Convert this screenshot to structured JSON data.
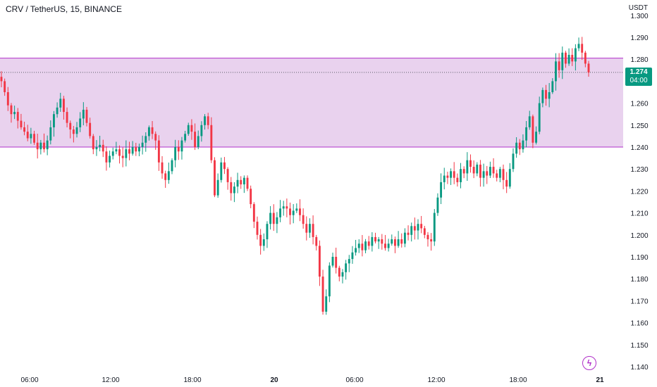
{
  "header": {
    "symbol_line": "CRV / TetherUS, 15, BINANCE",
    "currency": "USDT"
  },
  "last_price": {
    "value": "1.274",
    "countdown": "04:00",
    "color": "#089981"
  },
  "logo": {
    "icon": "lightning-bolt-icon",
    "color": "#b02fc9"
  },
  "chart_data": {
    "type": "candlestick",
    "y_ticks": [
      "1.140",
      "1.150",
      "1.160",
      "1.170",
      "1.180",
      "1.190",
      "1.200",
      "1.210",
      "1.220",
      "1.230",
      "1.240",
      "1.250",
      "1.260",
      "1.280",
      "1.290",
      "1.300"
    ],
    "x_ticks": [
      "06:00",
      "12:00",
      "18:00",
      "20",
      "06:00",
      "12:00",
      "18:00",
      "21"
    ],
    "ylim": [
      1.138,
      1.302
    ],
    "zone": {
      "low": 1.24,
      "high": 1.2805,
      "fill": "#e9d2ee",
      "line": "#b02fc9"
    },
    "last_price_line": 1.274,
    "up_color": "#089981",
    "down_color": "#f23645",
    "grid": false,
    "closes": [
      1.27,
      1.265,
      1.259,
      1.255,
      1.256,
      1.252,
      1.249,
      1.247,
      1.244,
      1.246,
      1.242,
      1.239,
      1.242,
      1.239,
      1.243,
      1.249,
      1.255,
      1.258,
      1.262,
      1.256,
      1.251,
      1.248,
      1.246,
      1.249,
      1.253,
      1.257,
      1.251,
      1.245,
      1.239,
      1.24,
      1.241,
      1.238,
      1.233,
      1.236,
      1.238,
      1.239,
      1.236,
      1.235,
      1.239,
      1.237,
      1.24,
      1.238,
      1.24,
      1.242,
      1.245,
      1.249,
      1.246,
      1.243,
      1.233,
      1.228,
      1.225,
      1.229,
      1.234,
      1.24,
      1.238,
      1.243,
      1.246,
      1.25,
      1.247,
      1.24,
      1.245,
      1.25,
      1.254,
      1.25,
      1.234,
      1.218,
      1.225,
      1.233,
      1.23,
      1.224,
      1.219,
      1.222,
      1.225,
      1.223,
      1.226,
      1.221,
      1.214,
      1.206,
      1.2,
      1.195,
      1.198,
      1.205,
      1.21,
      1.205,
      1.208,
      1.212,
      1.213,
      1.212,
      1.209,
      1.211,
      1.212,
      1.209,
      1.205,
      1.201,
      1.205,
      1.199,
      1.195,
      1.181,
      1.165,
      1.172,
      1.186,
      1.19,
      1.185,
      1.181,
      1.183,
      1.187,
      1.189,
      1.192,
      1.194,
      1.196,
      1.193,
      1.197,
      1.195,
      1.199,
      1.197,
      1.198,
      1.196,
      1.194,
      1.196,
      1.198,
      1.195,
      1.198,
      1.196,
      1.201,
      1.2,
      1.204,
      1.202,
      1.205,
      1.203,
      1.2,
      1.198,
      1.197,
      1.21,
      1.217,
      1.224,
      1.227,
      1.226,
      1.229,
      1.226,
      1.224,
      1.23,
      1.228,
      1.234,
      1.231,
      1.228,
      1.232,
      1.226,
      1.229,
      1.227,
      1.231,
      1.228,
      1.226,
      1.23,
      1.225,
      1.222,
      1.23,
      1.237,
      1.242,
      1.239,
      1.243,
      1.249,
      1.254,
      1.242,
      1.247,
      1.26,
      1.266,
      1.262,
      1.265,
      1.27,
      1.279,
      1.275,
      1.283,
      1.278,
      1.282,
      1.279,
      1.285,
      1.287,
      1.283,
      1.278,
      1.274
    ]
  }
}
